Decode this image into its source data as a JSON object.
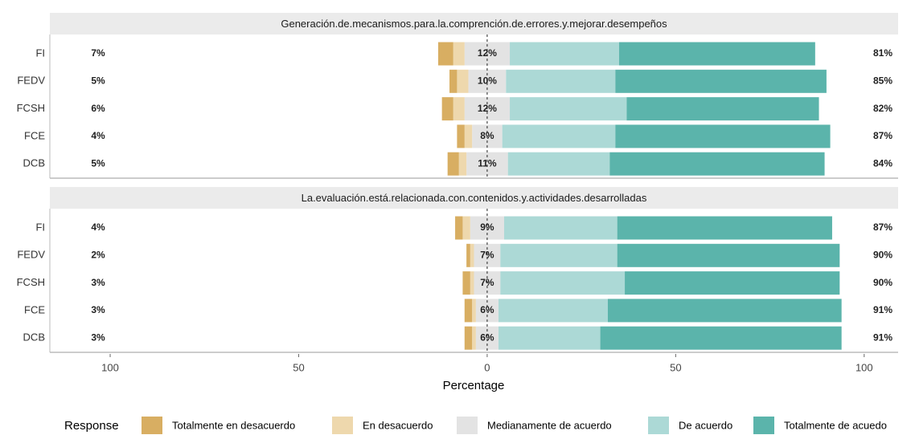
{
  "chart_data": {
    "type": "likert",
    "xlabel": "Percentage",
    "xlim": [
      -116,
      109
    ],
    "xticks": [
      {
        "value": -100,
        "label": "100"
      },
      {
        "value": -50,
        "label": "50"
      },
      0,
      50,
      100
    ],
    "legend_title": "Response",
    "series": [
      {
        "name": "Totalmente en desacuerdo",
        "color": "#d8ae62"
      },
      {
        "name": "En desacuerdo",
        "color": "#eed8ad"
      },
      {
        "name": "Medianamente de acuerdo",
        "color": "#e3e3e3"
      },
      {
        "name": "De acuerdo",
        "color": "#acd9d6"
      },
      {
        "name": "Totalmente de acuedo",
        "color": "#5bb4ab"
      }
    ],
    "facets": [
      {
        "title": "Generación.de.mecanismos.para.la.comprención.de.errores.y.mejorar.desempeños",
        "categories": [
          "FI",
          "FEDV",
          "FCSH",
          "FCE",
          "DCB"
        ],
        "values": [
          [
            4,
            2,
            3,
            2,
            3
          ],
          [
            3,
            3,
            3,
            2,
            2
          ],
          [
            12,
            10,
            12,
            8,
            11
          ],
          [
            29,
            29,
            31,
            30,
            27
          ],
          [
            52,
            56,
            51,
            57,
            57
          ]
        ],
        "value_labels": {
          "left": [
            "7%",
            "5%",
            "6%",
            "4%",
            "5%"
          ],
          "center": [
            "12%",
            "10%",
            "12%",
            "8%",
            "11%"
          ],
          "right": [
            "81%",
            "85%",
            "82%",
            "87%",
            "84%"
          ]
        }
      },
      {
        "title": "La.evaluación.está.relacionada.con.contenidos.y.actividades.desarrolladas",
        "categories": [
          "FI",
          "FEDV",
          "FCSH",
          "FCE",
          "DCB"
        ],
        "values": [
          [
            2,
            1,
            2,
            2,
            2
          ],
          [
            2,
            1,
            1,
            1,
            1
          ],
          [
            9,
            7,
            7,
            6,
            6
          ],
          [
            30,
            31,
            33,
            29,
            27
          ],
          [
            57,
            59,
            57,
            62,
            64
          ]
        ],
        "value_labels": {
          "left": [
            "4%",
            "2%",
            "3%",
            "3%",
            "3%"
          ],
          "center": [
            "9%",
            "7%",
            "7%",
            "6%",
            "6%"
          ],
          "right": [
            "87%",
            "90%",
            "90%",
            "91%",
            "91%"
          ]
        }
      }
    ]
  }
}
